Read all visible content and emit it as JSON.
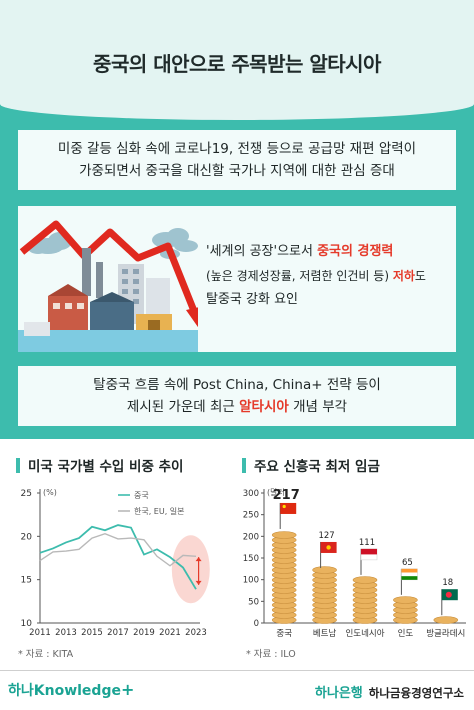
{
  "title": "중국의 대안으로 주목받는 알타시아",
  "panel1": {
    "line1": "미중 갈등 심화 속에 코로나19, 전쟁 등으로 공급망 재편 압력이",
    "line2": "가중되면서 중국을 대신할 국가나 지역에 대한 관심 증대"
  },
  "panel2": {
    "line1_a": "'세계의 공장'으로서 ",
    "line1_b": "중국의 경쟁력",
    "line2_a": "(높은 경제성장률, 저렴한 인건비 등) ",
    "line2_b": "저하",
    "line2_c": "도",
    "line3": "탈중국 강화 요인"
  },
  "panel3": {
    "line1": "탈중국 흐름 속에 Post China, China+ 전략 등이",
    "line2_a": "제시된 가운데 최근 ",
    "line2_b": "알타시아",
    "line2_c": " 개념 부각"
  },
  "left_chart_title": "미국 국가별 수입 비중 추이",
  "right_chart_title": "주요 신흥국 최저 임금",
  "left_source": "* 자료 : KITA",
  "right_source": "* 자료 : ILO",
  "footer_left": "하나Knowledge",
  "footer_plus": "+",
  "footer_bank": "하나은행",
  "footer_institute": "하나금융경영연구소",
  "colors": {
    "accent": "#e53a2a",
    "teal": "#3dbcad",
    "china_line": "#3dbcad",
    "others_line": "#b9b9b9",
    "coin": "#e9b25e"
  },
  "chart_data": [
    {
      "type": "line",
      "title": "미국 국가별 수입 비중 추이",
      "unit": "(%)",
      "x": [
        2011,
        2012,
        2013,
        2014,
        2015,
        2016,
        2017,
        2018,
        2019,
        2020,
        2021,
        2022,
        2023
      ],
      "xticks": [
        "2011",
        "2013",
        "2015",
        "2017",
        "2019",
        "2021",
        "2023"
      ],
      "ylim": [
        10,
        25
      ],
      "yticks": [
        "10",
        "15",
        "20",
        "25"
      ],
      "legend_position": "top-right",
      "series": [
        {
          "name": "중국",
          "values": [
            18.1,
            18.6,
            19.3,
            19.8,
            21.1,
            20.7,
            21.3,
            21.0,
            17.9,
            18.5,
            17.6,
            16.4,
            13.9
          ]
        },
        {
          "name": "한국, EU, 일본",
          "values": [
            17.2,
            18.2,
            18.3,
            18.5,
            19.8,
            20.3,
            19.7,
            19.8,
            19.6,
            17.7,
            16.6,
            17.8,
            17.7
          ]
        }
      ]
    },
    {
      "type": "bar",
      "title": "주요 신흥국 최저 임금",
      "unit": "(달러)",
      "categories": [
        "중국",
        "베트남",
        "인도네시아",
        "인도",
        "방글라데시"
      ],
      "values": [
        217,
        127,
        111,
        65,
        18
      ],
      "value_labels": [
        "217",
        "127",
        "111",
        "65",
        "18"
      ],
      "ylim": [
        0,
        300
      ],
      "yticks": [
        "0",
        "50",
        "100",
        "150",
        "200",
        "250",
        "300"
      ],
      "flag_icons": [
        "china-flag-icon",
        "vietnam-flag-icon",
        "indonesia-flag-icon",
        "india-flag-icon",
        "bangladesh-flag-icon"
      ]
    }
  ]
}
